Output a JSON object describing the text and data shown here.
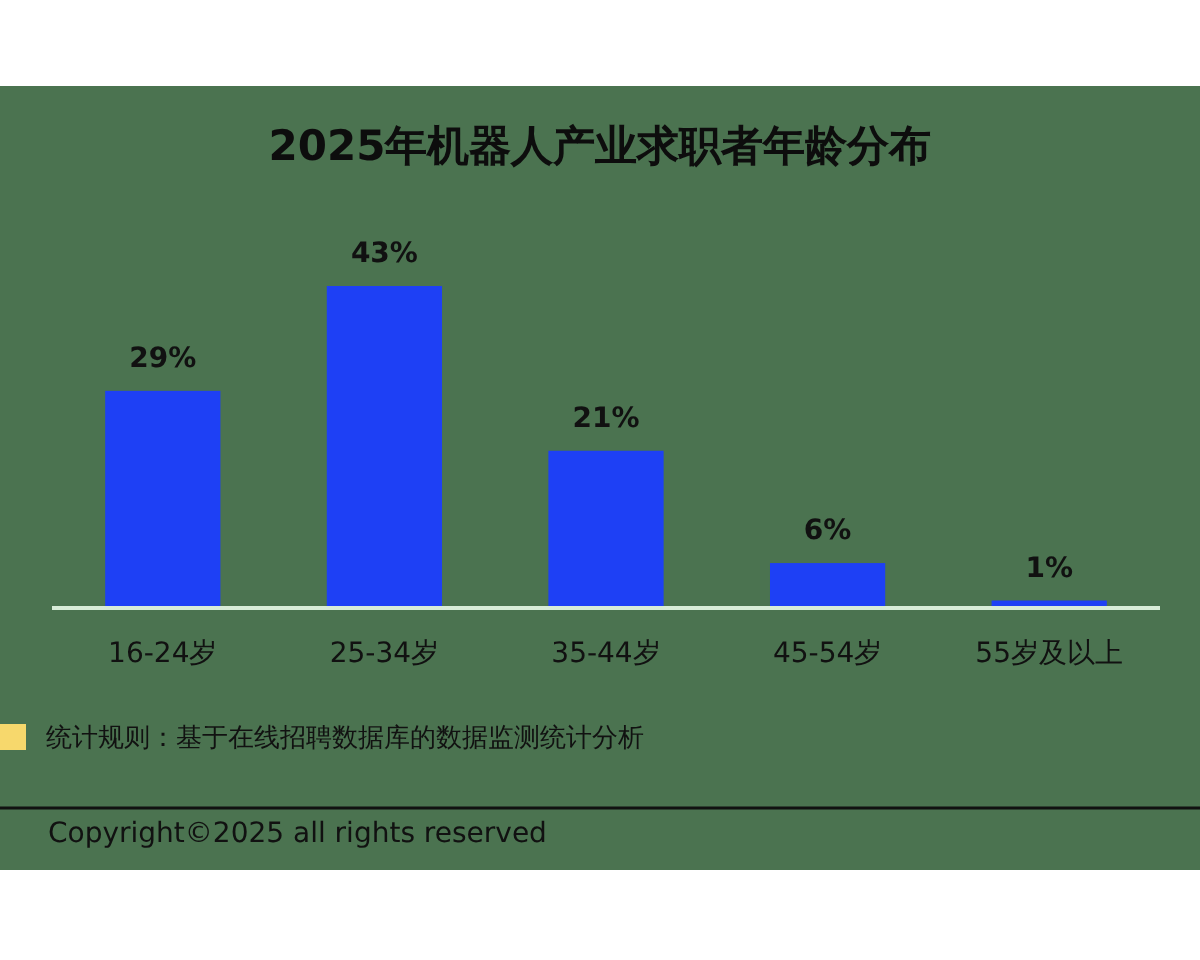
{
  "chart_data": {
    "type": "bar",
    "title": "2025年机器人产业求职者年龄分布",
    "categories": [
      "16-24岁",
      "25-34岁",
      "35-44岁",
      "45-54岁",
      "55岁及以上"
    ],
    "values": [
      29,
      43,
      21,
      6,
      1
    ],
    "color": "#1e40f5",
    "value_labels": [
      "29%",
      "43%",
      "21%",
      "6%",
      "1%"
    ],
    "annotations": [
      "统计规则：基于在线招聘数据库的数据监测统计分析",
      "Copyright©2025 all rights reserved"
    ]
  }
}
